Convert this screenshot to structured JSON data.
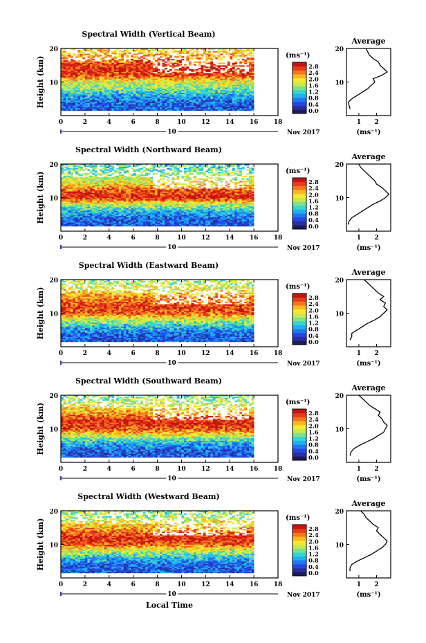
{
  "xaxis": {
    "ticks": [
      "0",
      "2",
      "4",
      "6",
      "8",
      "10",
      "12",
      "14",
      "16",
      "18"
    ],
    "day_label": "10",
    "month_label": "Nov 2017",
    "label": "Local Time"
  },
  "yaxis": {
    "label": "Height (km)",
    "ticks": [
      "20",
      "10"
    ]
  },
  "colorbar": {
    "unit": "(ms⁻¹)",
    "labels": [
      "2.8",
      "2.4",
      "2.0",
      "1.6",
      "1.2",
      "0.8",
      "0.4",
      "0.0"
    ]
  },
  "average_title": "Average",
  "average_unit": "(ms⁻¹)",
  "colors": {
    "scale": [
      "#2a2f9e",
      "#2347e6",
      "#1e78f0",
      "#1fb0f2",
      "#33d6d0",
      "#7fe08a",
      "#c9ea4a",
      "#f6e830",
      "#f9b81e",
      "#f5761e",
      "#e83a1c",
      "#c81410"
    ],
    "background": "#ffffff"
  },
  "chart_data": [
    {
      "type": "heatmap",
      "title": "Spectral Width (Vertical Beam)",
      "xlabel": "",
      "ylabel": "Height (km)",
      "xlim": [
        0,
        18
      ],
      "ylim": [
        0,
        20
      ],
      "data_x_range": [
        0,
        16
      ],
      "value_range": [
        0,
        2.8
      ],
      "profile": [
        [
          2,
          0.4
        ],
        [
          4,
          0.5
        ],
        [
          6,
          0.8
        ],
        [
          8,
          1.3
        ],
        [
          10,
          1.6
        ],
        [
          12,
          2.4
        ],
        [
          14,
          2.6
        ],
        [
          16,
          2.3
        ],
        [
          18,
          2.0
        ],
        [
          20,
          1.8
        ]
      ],
      "average": {
        "title": "Average",
        "xticks": [
          "1",
          "2"
        ],
        "xlim": [
          0.3,
          2.8
        ],
        "y": [
          2,
          3,
          4,
          5,
          6,
          7,
          8,
          9,
          10,
          11,
          12,
          13,
          14,
          15,
          16,
          17,
          18,
          19,
          20
        ],
        "x": [
          0.5,
          0.45,
          0.4,
          0.6,
          0.9,
          1.2,
          1.5,
          1.7,
          1.9,
          1.8,
          2.3,
          2.6,
          2.4,
          2.2,
          2.1,
          1.8,
          1.6,
          1.5,
          1.4
        ]
      }
    },
    {
      "type": "heatmap",
      "title": "Spectral Width (Northward Beam)",
      "xlabel": "",
      "ylabel": "Height (km)",
      "xlim": [
        0,
        18
      ],
      "ylim": [
        0,
        20
      ],
      "data_x_range": [
        0,
        16
      ],
      "value_range": [
        0,
        2.8
      ],
      "profile": [
        [
          2,
          0.4
        ],
        [
          4,
          0.5
        ],
        [
          6,
          0.9
        ],
        [
          8,
          1.5
        ],
        [
          10,
          2.6
        ],
        [
          12,
          2.4
        ],
        [
          14,
          1.8
        ],
        [
          16,
          1.5
        ],
        [
          18,
          1.2
        ],
        [
          20,
          1.0
        ]
      ],
      "average": {
        "title": "Average",
        "xticks": [
          "1",
          "2"
        ],
        "xlim": [
          0.3,
          2.8
        ],
        "y": [
          2,
          3,
          4,
          5,
          6,
          7,
          8,
          9,
          10,
          11,
          12,
          13,
          14,
          15,
          16,
          17,
          18,
          19,
          20
        ],
        "x": [
          0.4,
          0.45,
          0.6,
          0.9,
          1.2,
          1.5,
          1.8,
          2.2,
          2.5,
          2.7,
          2.5,
          2.3,
          2.0,
          1.9,
          1.7,
          1.5,
          1.3,
          1.1,
          1.0
        ]
      }
    },
    {
      "type": "heatmap",
      "title": "Spectral Width (Eastward Beam)",
      "xlabel": "",
      "ylabel": "Height (km)",
      "xlim": [
        0,
        18
      ],
      "ylim": [
        0,
        20
      ],
      "data_x_range": [
        0,
        16
      ],
      "value_range": [
        0,
        2.8
      ],
      "profile": [
        [
          2,
          0.4
        ],
        [
          4,
          0.5
        ],
        [
          6,
          0.9
        ],
        [
          8,
          1.5
        ],
        [
          10,
          2.3
        ],
        [
          12,
          2.5
        ],
        [
          14,
          2.2
        ],
        [
          16,
          1.9
        ],
        [
          18,
          1.6
        ],
        [
          20,
          1.4
        ]
      ],
      "average": {
        "title": "Average",
        "xticks": [
          "1",
          "2"
        ],
        "xlim": [
          0.3,
          2.8
        ],
        "y": [
          2,
          3,
          4,
          5,
          6,
          7,
          8,
          9,
          10,
          11,
          12,
          13,
          14,
          15,
          16,
          17,
          18,
          19,
          20
        ],
        "x": [
          0.5,
          0.6,
          0.6,
          0.9,
          1.2,
          1.5,
          1.9,
          2.2,
          2.4,
          2.6,
          2.4,
          2.5,
          2.2,
          2.4,
          2.1,
          1.9,
          1.7,
          1.5,
          1.3
        ]
      }
    },
    {
      "type": "heatmap",
      "title": "Spectral Width (Southward Beam)",
      "xlabel": "",
      "ylabel": "Height (km)",
      "xlim": [
        0,
        18
      ],
      "ylim": [
        0,
        20
      ],
      "data_x_range": [
        0,
        16
      ],
      "value_range": [
        0,
        2.8
      ],
      "profile": [
        [
          2,
          0.4
        ],
        [
          4,
          0.5
        ],
        [
          6,
          0.9
        ],
        [
          8,
          1.6
        ],
        [
          10,
          2.4
        ],
        [
          12,
          2.6
        ],
        [
          14,
          2.2
        ],
        [
          16,
          1.8
        ],
        [
          18,
          1.5
        ],
        [
          20,
          1.2
        ]
      ],
      "average": {
        "title": "Average",
        "xticks": [
          "1",
          "2"
        ],
        "xlim": [
          0.3,
          2.8
        ],
        "y": [
          2,
          3,
          4,
          5,
          6,
          7,
          8,
          9,
          10,
          11,
          12,
          13,
          14,
          15,
          16,
          17,
          18,
          19,
          20
        ],
        "x": [
          0.5,
          0.55,
          0.7,
          1.0,
          1.4,
          1.8,
          2.1,
          2.4,
          2.5,
          2.6,
          2.4,
          2.3,
          2.1,
          2.2,
          1.9,
          1.6,
          1.4,
          1.2,
          1.0
        ]
      }
    },
    {
      "type": "heatmap",
      "title": "Spectral Width (Westward Beam)",
      "xlabel": "Local Time",
      "ylabel": "Height (km)",
      "xlim": [
        0,
        18
      ],
      "ylim": [
        0,
        20
      ],
      "data_x_range": [
        0,
        16
      ],
      "value_range": [
        0,
        2.8
      ],
      "profile": [
        [
          2,
          0.4
        ],
        [
          4,
          0.5
        ],
        [
          6,
          0.9
        ],
        [
          8,
          1.5
        ],
        [
          10,
          2.3
        ],
        [
          12,
          2.6
        ],
        [
          14,
          2.2
        ],
        [
          16,
          1.8
        ],
        [
          18,
          1.5
        ],
        [
          20,
          1.3
        ]
      ],
      "average": {
        "title": "Average",
        "xticks": [
          "1",
          "2"
        ],
        "xlim": [
          0.3,
          2.8
        ],
        "y": [
          2,
          3,
          4,
          5,
          6,
          7,
          8,
          9,
          10,
          11,
          12,
          13,
          14,
          15,
          16,
          17,
          18,
          19,
          20
        ],
        "x": [
          0.5,
          0.5,
          0.6,
          0.9,
          1.3,
          1.7,
          2.0,
          2.3,
          2.5,
          2.6,
          2.4,
          2.2,
          2.0,
          2.1,
          1.8,
          1.6,
          1.4,
          1.3,
          1.1
        ]
      }
    }
  ]
}
